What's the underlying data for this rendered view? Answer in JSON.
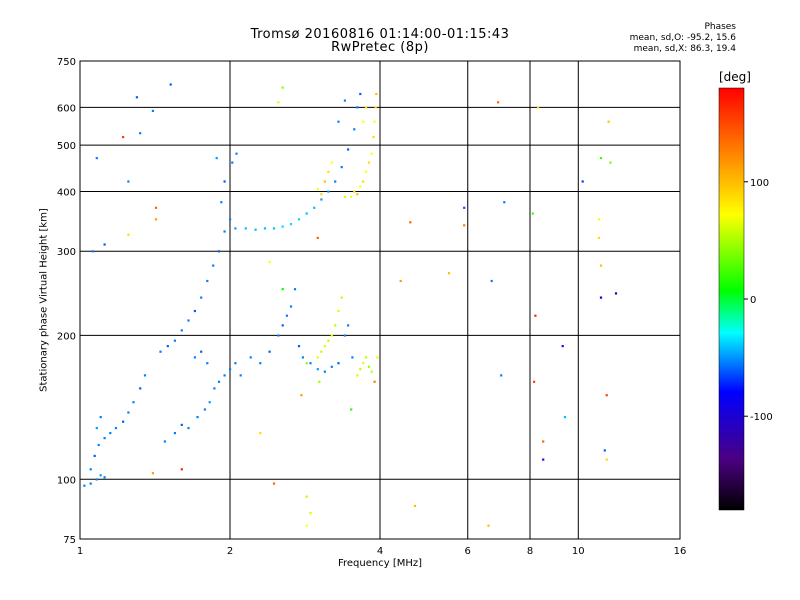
{
  "header": {
    "title": "Tromsø 20160816 01:14:00-01:15:43",
    "subtitle": "RwPretec (8p)",
    "phase_title": "Phases",
    "phase_line1": "mean, sd,O: -95.2, 15.6",
    "phase_line2": "mean, sd,X:  86.3, 19.4"
  },
  "chart_data": {
    "type": "scatter",
    "xlabel": "Frequency [MHz]",
    "ylabel": "Stationary phase Virtual Height [km]",
    "x_scale": "log",
    "y_scale": "log",
    "xlim": [
      1,
      16
    ],
    "ylim": [
      75,
      750
    ],
    "x_ticks": [
      1,
      2,
      4,
      6,
      8,
      10,
      16
    ],
    "x_tick_labels": [
      "1",
      "2",
      "4",
      "6",
      "8",
      "10",
      "16"
    ],
    "y_ticks": [
      75,
      100,
      200,
      300,
      400,
      500,
      600,
      750
    ],
    "y_tick_labels": [
      "75",
      "100",
      "200",
      "300",
      "400",
      "500",
      "600",
      "750"
    ],
    "grid": true,
    "colorbar": {
      "label": "[deg]",
      "range": [
        -180,
        180
      ],
      "ticks": [
        100,
        0,
        -100
      ],
      "tick_labels": [
        "100",
        "0",
        "-100"
      ]
    },
    "series": [
      {
        "values": [
          {
            "x": 1.02,
            "y": 97,
            "c": -100
          },
          {
            "x": 1.05,
            "y": 98,
            "c": -100
          },
          {
            "x": 1.08,
            "y": 100,
            "c": -100
          },
          {
            "x": 1.1,
            "y": 102,
            "c": -90
          },
          {
            "x": 1.12,
            "y": 101,
            "c": -100
          },
          {
            "x": 1.05,
            "y": 105,
            "c": -100
          },
          {
            "x": 1.07,
            "y": 112,
            "c": -110
          },
          {
            "x": 1.09,
            "y": 118,
            "c": -100
          },
          {
            "x": 1.12,
            "y": 122,
            "c": -100
          },
          {
            "x": 1.15,
            "y": 125,
            "c": -100
          },
          {
            "x": 1.18,
            "y": 128,
            "c": -100
          },
          {
            "x": 1.22,
            "y": 132,
            "c": -110
          },
          {
            "x": 1.25,
            "y": 138,
            "c": -100
          },
          {
            "x": 1.28,
            "y": 145,
            "c": -100
          },
          {
            "x": 1.32,
            "y": 155,
            "c": -110
          },
          {
            "x": 1.35,
            "y": 165,
            "c": -100
          },
          {
            "x": 1.08,
            "y": 128,
            "c": -90
          },
          {
            "x": 1.1,
            "y": 135,
            "c": -100
          },
          {
            "x": 1.06,
            "y": 300,
            "c": -100
          },
          {
            "x": 1.08,
            "y": 470,
            "c": -100
          },
          {
            "x": 1.12,
            "y": 310,
            "c": -110
          },
          {
            "x": 1.25,
            "y": 420,
            "c": -100
          },
          {
            "x": 1.3,
            "y": 630,
            "c": -110
          },
          {
            "x": 1.32,
            "y": 530,
            "c": -100
          },
          {
            "x": 1.4,
            "y": 590,
            "c": -100
          },
          {
            "x": 1.52,
            "y": 670,
            "c": -110
          },
          {
            "x": 1.48,
            "y": 120,
            "c": -100
          },
          {
            "x": 1.55,
            "y": 125,
            "c": -100
          },
          {
            "x": 1.6,
            "y": 130,
            "c": -110
          },
          {
            "x": 1.65,
            "y": 128,
            "c": -100
          },
          {
            "x": 1.72,
            "y": 135,
            "c": -100
          },
          {
            "x": 1.78,
            "y": 140,
            "c": -100
          },
          {
            "x": 1.82,
            "y": 145,
            "c": -90
          },
          {
            "x": 1.86,
            "y": 155,
            "c": -100
          },
          {
            "x": 1.9,
            "y": 160,
            "c": -100
          },
          {
            "x": 1.95,
            "y": 165,
            "c": -100
          },
          {
            "x": 2.0,
            "y": 170,
            "c": -100
          },
          {
            "x": 1.45,
            "y": 185,
            "c": -100
          },
          {
            "x": 1.5,
            "y": 190,
            "c": -110
          },
          {
            "x": 1.55,
            "y": 195,
            "c": -100
          },
          {
            "x": 1.6,
            "y": 205,
            "c": -100
          },
          {
            "x": 1.65,
            "y": 215,
            "c": -100
          },
          {
            "x": 1.7,
            "y": 225,
            "c": -110
          },
          {
            "x": 1.75,
            "y": 240,
            "c": -100
          },
          {
            "x": 1.8,
            "y": 260,
            "c": -100
          },
          {
            "x": 1.85,
            "y": 280,
            "c": -100
          },
          {
            "x": 1.9,
            "y": 300,
            "c": -110
          },
          {
            "x": 1.95,
            "y": 330,
            "c": -100
          },
          {
            "x": 2.0,
            "y": 350,
            "c": -100
          },
          {
            "x": 1.92,
            "y": 380,
            "c": -100
          },
          {
            "x": 1.95,
            "y": 420,
            "c": -110
          },
          {
            "x": 2.02,
            "y": 460,
            "c": -100
          },
          {
            "x": 1.88,
            "y": 470,
            "c": -90
          },
          {
            "x": 2.06,
            "y": 480,
            "c": -100
          },
          {
            "x": 1.7,
            "y": 180,
            "c": -100
          },
          {
            "x": 1.75,
            "y": 185,
            "c": -110
          },
          {
            "x": 1.8,
            "y": 175,
            "c": -100
          },
          {
            "x": 2.05,
            "y": 175,
            "c": -100
          },
          {
            "x": 2.1,
            "y": 165,
            "c": -100
          },
          {
            "x": 2.05,
            "y": 335,
            "c": -90
          },
          {
            "x": 2.15,
            "y": 335,
            "c": -80
          },
          {
            "x": 2.25,
            "y": 333,
            "c": -80
          },
          {
            "x": 2.35,
            "y": 335,
            "c": -80
          },
          {
            "x": 2.45,
            "y": 335,
            "c": -80
          },
          {
            "x": 2.55,
            "y": 338,
            "c": -70
          },
          {
            "x": 2.65,
            "y": 342,
            "c": -70
          },
          {
            "x": 2.75,
            "y": 350,
            "c": -70
          },
          {
            "x": 2.85,
            "y": 360,
            "c": -80
          },
          {
            "x": 2.95,
            "y": 370,
            "c": -80
          },
          {
            "x": 3.05,
            "y": 385,
            "c": -90
          },
          {
            "x": 3.15,
            "y": 400,
            "c": -90
          },
          {
            "x": 3.25,
            "y": 420,
            "c": -100
          },
          {
            "x": 3.35,
            "y": 450,
            "c": -100
          },
          {
            "x": 3.45,
            "y": 490,
            "c": -110
          },
          {
            "x": 3.55,
            "y": 540,
            "c": -100
          },
          {
            "x": 3.6,
            "y": 600,
            "c": -100
          },
          {
            "x": 3.65,
            "y": 640,
            "c": -110
          },
          {
            "x": 3.4,
            "y": 620,
            "c": -100
          },
          {
            "x": 3.3,
            "y": 560,
            "c": -100
          },
          {
            "x": 2.5,
            "y": 200,
            "c": -100
          },
          {
            "x": 2.55,
            "y": 210,
            "c": -110
          },
          {
            "x": 2.6,
            "y": 220,
            "c": -100
          },
          {
            "x": 2.65,
            "y": 230,
            "c": -100
          },
          {
            "x": 2.7,
            "y": 250,
            "c": -100
          },
          {
            "x": 2.75,
            "y": 190,
            "c": -110
          },
          {
            "x": 2.8,
            "y": 180,
            "c": -100
          },
          {
            "x": 2.9,
            "y": 175,
            "c": -100
          },
          {
            "x": 3.0,
            "y": 170,
            "c": -90
          },
          {
            "x": 3.1,
            "y": 168,
            "c": -100
          },
          {
            "x": 3.2,
            "y": 172,
            "c": -100
          },
          {
            "x": 3.3,
            "y": 175,
            "c": -110
          },
          {
            "x": 3.4,
            "y": 200,
            "c": -100
          },
          {
            "x": 3.45,
            "y": 210,
            "c": -100
          },
          {
            "x": 2.3,
            "y": 175,
            "c": -100
          },
          {
            "x": 2.2,
            "y": 180,
            "c": -100
          },
          {
            "x": 2.4,
            "y": 185,
            "c": -110
          },
          {
            "x": 3.52,
            "y": 180,
            "c": -100
          },
          {
            "x": 8.5,
            "y": 110,
            "c": -150
          },
          {
            "x": 9.3,
            "y": 190,
            "c": -150
          },
          {
            "x": 10.2,
            "y": 420,
            "c": -120
          },
          {
            "x": 11.1,
            "y": 240,
            "c": -140
          },
          {
            "x": 6.7,
            "y": 260,
            "c": -100
          },
          {
            "x": 7.1,
            "y": 380,
            "c": -100
          },
          {
            "x": 5.9,
            "y": 370,
            "c": -110
          },
          {
            "x": 7.0,
            "y": 165,
            "c": -100
          },
          {
            "x": 9.4,
            "y": 135,
            "c": -80
          },
          {
            "x": 11.3,
            "y": 115,
            "c": -110
          },
          {
            "x": 11.9,
            "y": 245,
            "c": -160
          }
        ]
      },
      {
        "values": [
          {
            "x": 3.0,
            "y": 405,
            "c": 100
          },
          {
            "x": 3.05,
            "y": 395,
            "c": 110
          },
          {
            "x": 3.1,
            "y": 420,
            "c": 120
          },
          {
            "x": 3.15,
            "y": 440,
            "c": 110
          },
          {
            "x": 3.2,
            "y": 460,
            "c": 100
          },
          {
            "x": 3.5,
            "y": 390,
            "c": 100
          },
          {
            "x": 3.55,
            "y": 400,
            "c": 110
          },
          {
            "x": 3.6,
            "y": 395,
            "c": 120
          },
          {
            "x": 3.65,
            "y": 410,
            "c": 100
          },
          {
            "x": 3.7,
            "y": 420,
            "c": 110
          },
          {
            "x": 3.75,
            "y": 440,
            "c": 100
          },
          {
            "x": 3.8,
            "y": 460,
            "c": 110
          },
          {
            "x": 3.85,
            "y": 480,
            "c": 100
          },
          {
            "x": 3.88,
            "y": 520,
            "c": 110
          },
          {
            "x": 3.9,
            "y": 560,
            "c": 100
          },
          {
            "x": 3.92,
            "y": 600,
            "c": 110
          },
          {
            "x": 3.93,
            "y": 640,
            "c": 120
          },
          {
            "x": 3.7,
            "y": 560,
            "c": 100
          },
          {
            "x": 3.75,
            "y": 600,
            "c": 110
          },
          {
            "x": 3.4,
            "y": 390,
            "c": 90
          },
          {
            "x": 3.0,
            "y": 180,
            "c": 90
          },
          {
            "x": 3.05,
            "y": 185,
            "c": 80
          },
          {
            "x": 3.1,
            "y": 190,
            "c": 90
          },
          {
            "x": 3.15,
            "y": 195,
            "c": 80
          },
          {
            "x": 3.2,
            "y": 200,
            "c": 90
          },
          {
            "x": 3.25,
            "y": 210,
            "c": 80
          },
          {
            "x": 3.3,
            "y": 225,
            "c": 90
          },
          {
            "x": 3.35,
            "y": 240,
            "c": 80
          },
          {
            "x": 3.6,
            "y": 165,
            "c": 90
          },
          {
            "x": 3.65,
            "y": 170,
            "c": 80
          },
          {
            "x": 3.7,
            "y": 175,
            "c": 90
          },
          {
            "x": 3.75,
            "y": 180,
            "c": 80
          },
          {
            "x": 3.8,
            "y": 172,
            "c": 70
          },
          {
            "x": 3.85,
            "y": 168,
            "c": 80
          },
          {
            "x": 3.95,
            "y": 180,
            "c": 90
          },
          {
            "x": 2.85,
            "y": 175,
            "c": 60
          },
          {
            "x": 3.02,
            "y": 160,
            "c": 70
          },
          {
            "x": 6.9,
            "y": 615,
            "c": 150
          },
          {
            "x": 4.7,
            "y": 88,
            "c": 120
          },
          {
            "x": 4.4,
            "y": 260,
            "c": 130
          },
          {
            "x": 4.6,
            "y": 345,
            "c": 150
          },
          {
            "x": 5.9,
            "y": 340,
            "c": 140
          },
          {
            "x": 5.5,
            "y": 270,
            "c": 120
          },
          {
            "x": 6.6,
            "y": 80,
            "c": 120
          },
          {
            "x": 11.5,
            "y": 560,
            "c": 120
          },
          {
            "x": 11.0,
            "y": 320,
            "c": 110
          },
          {
            "x": 11.1,
            "y": 280,
            "c": 120
          },
          {
            "x": 11.0,
            "y": 350,
            "c": 100
          },
          {
            "x": 11.4,
            "y": 150,
            "c": 160
          },
          {
            "x": 11.4,
            "y": 110,
            "c": 110
          },
          {
            "x": 11.1,
            "y": 470,
            "c": 40
          },
          {
            "x": 11.6,
            "y": 460,
            "c": 60
          },
          {
            "x": 1.22,
            "y": 520,
            "c": 160
          },
          {
            "x": 1.42,
            "y": 370,
            "c": 150
          },
          {
            "x": 1.42,
            "y": 350,
            "c": 130
          },
          {
            "x": 1.25,
            "y": 325,
            "c": 110
          },
          {
            "x": 1.6,
            "y": 105,
            "c": 170
          },
          {
            "x": 1.4,
            "y": 103,
            "c": 130
          },
          {
            "x": 2.3,
            "y": 125,
            "c": 110
          },
          {
            "x": 2.4,
            "y": 285,
            "c": 100
          },
          {
            "x": 2.5,
            "y": 615,
            "c": 90
          },
          {
            "x": 2.55,
            "y": 660,
            "c": 60
          },
          {
            "x": 2.45,
            "y": 98,
            "c": 150
          },
          {
            "x": 2.85,
            "y": 80,
            "c": 100
          },
          {
            "x": 2.9,
            "y": 85,
            "c": 90
          },
          {
            "x": 2.85,
            "y": 92,
            "c": 80
          },
          {
            "x": 2.78,
            "y": 150,
            "c": 130
          },
          {
            "x": 3.0,
            "y": 320,
            "c": 150
          },
          {
            "x": 8.2,
            "y": 220,
            "c": 170
          },
          {
            "x": 8.3,
            "y": 600,
            "c": 110
          },
          {
            "x": 8.1,
            "y": 360,
            "c": 40
          },
          {
            "x": 8.15,
            "y": 160,
            "c": 160
          },
          {
            "x": 8.5,
            "y": 120,
            "c": 150
          },
          {
            "x": 3.5,
            "y": 140,
            "c": 30
          },
          {
            "x": 3.9,
            "y": 160,
            "c": 140
          },
          {
            "x": 2.55,
            "y": 250,
            "c": 20
          }
        ]
      }
    ]
  }
}
